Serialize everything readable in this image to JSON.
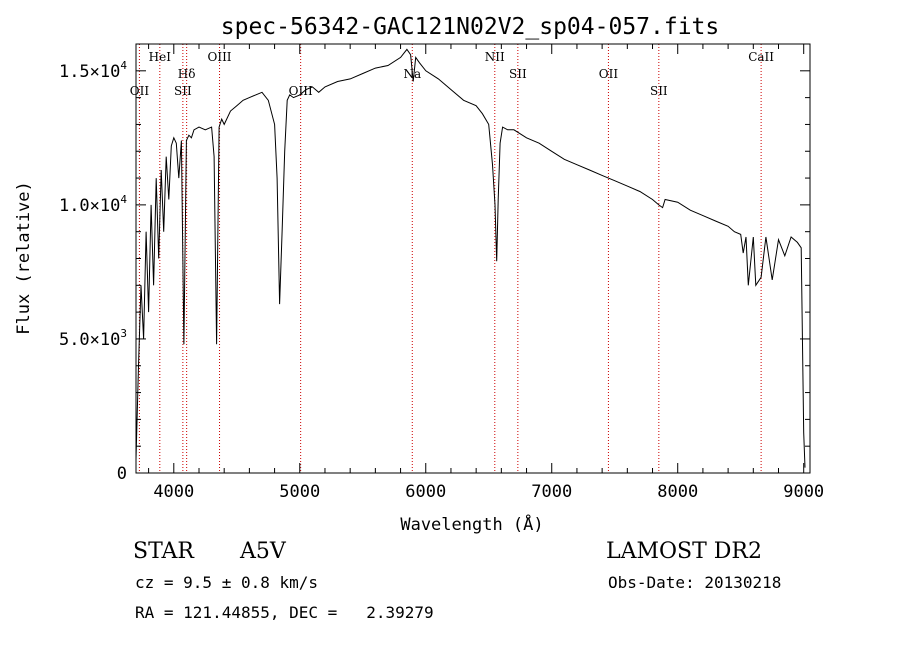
{
  "chart_data": {
    "type": "line",
    "title": "spec-56342-GAC121N02V2_sp04-057.fits",
    "xlabel": "Wavelength (Å)",
    "ylabel": "Flux (relative)",
    "xlim": [
      3700,
      9050
    ],
    "ylim": [
      0,
      16000
    ],
    "xticks": [
      4000,
      5000,
      6000,
      7000,
      8000,
      9000
    ],
    "xtick_labels": [
      "4000",
      "5000",
      "6000",
      "7000",
      "8000",
      "9000"
    ],
    "yticks": [
      {
        "value": 0,
        "mantissa": "0",
        "exp": ""
      },
      {
        "value": 5000,
        "mantissa": "5.0×10",
        "exp": "3"
      },
      {
        "value": 10000,
        "mantissa": "1.0×10",
        "exp": "4"
      },
      {
        "value": 15000,
        "mantissa": "1.5×10",
        "exp": "4"
      }
    ],
    "grid": false,
    "series": [
      {
        "x": [
          3700,
          3720,
          3740,
          3760,
          3780,
          3800,
          3820,
          3840,
          3860,
          3880,
          3900,
          3920,
          3940,
          3960,
          3980,
          4000,
          4020,
          4040,
          4060,
          4080,
          4100,
          4120,
          4140,
          4160,
          4200,
          4250,
          4300,
          4320,
          4340,
          4360,
          4380,
          4400,
          4450,
          4500,
          4550,
          4600,
          4650,
          4700,
          4750,
          4800,
          4820,
          4840,
          4860,
          4880,
          4900,
          4920,
          4950,
          5000,
          5050,
          5100,
          5150,
          5200,
          5300,
          5400,
          5500,
          5600,
          5700,
          5800,
          5850,
          5880,
          5900,
          5920,
          5950,
          6000,
          6100,
          6200,
          6300,
          6400,
          6450,
          6500,
          6530,
          6550,
          6563,
          6575,
          6590,
          6610,
          6650,
          6700,
          6800,
          6900,
          7000,
          7100,
          7200,
          7300,
          7400,
          7500,
          7600,
          7700,
          7800,
          7850,
          7880,
          7900,
          8000,
          8100,
          8200,
          8300,
          8400,
          8450,
          8500,
          8520,
          8542,
          8560,
          8600,
          8620,
          8662,
          8700,
          8750,
          8800,
          8850,
          8900,
          8950,
          8980,
          9000,
          9010
        ],
        "y": [
          500,
          4000,
          7000,
          5000,
          9000,
          6000,
          10000,
          7000,
          11000,
          8000,
          11300,
          9000,
          11800,
          10200,
          12200,
          12500,
          12300,
          11000,
          12400,
          4800,
          12400,
          12600,
          12500,
          12800,
          12900,
          12800,
          12900,
          11800,
          4800,
          12900,
          13200,
          13000,
          13500,
          13700,
          13900,
          14000,
          14100,
          14200,
          13900,
          13000,
          11000,
          6300,
          9000,
          12000,
          13900,
          14100,
          14000,
          14100,
          14300,
          14400,
          14200,
          14400,
          14600,
          14700,
          14900,
          15100,
          15200,
          15500,
          15800,
          15600,
          14600,
          15500,
          15300,
          15000,
          14700,
          14300,
          13900,
          13700,
          13400,
          13000,
          11500,
          10000,
          7900,
          10200,
          12300,
          12900,
          12800,
          12800,
          12500,
          12300,
          12000,
          11700,
          11500,
          11300,
          11100,
          10900,
          10700,
          10500,
          10200,
          10000,
          9900,
          10200,
          10100,
          9800,
          9600,
          9400,
          9200,
          9000,
          8900,
          8200,
          8800,
          7000,
          8800,
          7000,
          7300,
          8800,
          7200,
          8700,
          8100,
          8800,
          8600,
          8400,
          1500,
          200
        ]
      }
    ],
    "lines": [
      {
        "x": 3727,
        "label": "OII",
        "row": 2
      },
      {
        "x": 3889,
        "label": "HeI",
        "row": 1
      },
      {
        "x": 4072,
        "label": "SII",
        "row": 2
      },
      {
        "x": 4102,
        "label": "Hδ",
        "row": 1.5
      },
      {
        "x": 4363,
        "label": "OIII",
        "row": 1
      },
      {
        "x": 5007,
        "label": "OIII",
        "row": 2
      },
      {
        "x": 5893,
        "label": "Na",
        "row": 1.5
      },
      {
        "x": 6548,
        "label": "NII",
        "row": 1
      },
      {
        "x": 6731,
        "label": "SII",
        "row": 1.5
      },
      {
        "x": 7450,
        "label": "OII",
        "row": 1.5
      },
      {
        "x": 7850,
        "label": "SII",
        "row": 2
      },
      {
        "x": 8662,
        "label": "CaII",
        "row": 1
      }
    ]
  },
  "info": {
    "object_class": "STAR",
    "subclass": "A5V",
    "survey": "LAMOST DR2",
    "redshift": "cz = 9.5 ± 0.8 km/s",
    "obs_date": "Obs-Date: 20130218",
    "coords": "RA = 121.44855, DEC =   2.39279"
  },
  "colors": {
    "marker_lines": "#cc0000",
    "spectrum": "#000000"
  }
}
